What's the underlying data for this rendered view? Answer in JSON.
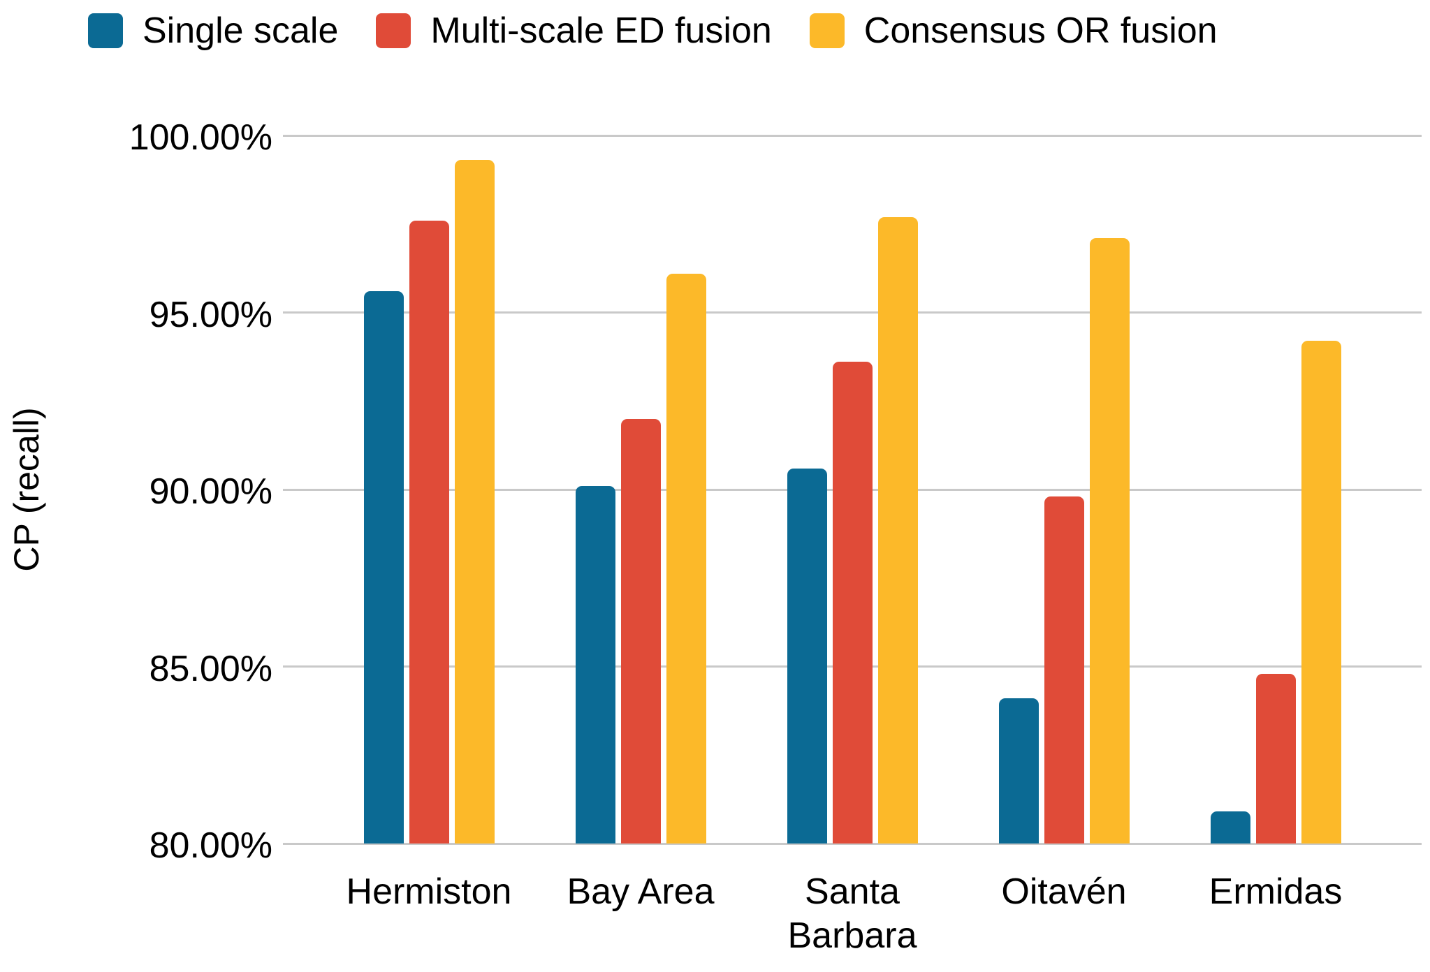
{
  "chart_data": {
    "type": "bar",
    "title": "",
    "xlabel": "",
    "ylabel": "CP (recall)",
    "categories": [
      "Hermiston",
      "Bay Area",
      "Santa Barbara",
      "Oitavén",
      "Ermidas"
    ],
    "series": [
      {
        "name": "Single scale",
        "color": "#0b6a94",
        "values": [
          95.6,
          90.1,
          90.6,
          84.1,
          80.9
        ]
      },
      {
        "name": "Multi-scale ED fusion",
        "color": "#e04b38",
        "values": [
          97.6,
          92.0,
          93.6,
          89.8,
          84.8
        ]
      },
      {
        "name": "Consensus OR fusion",
        "color": "#fcb929",
        "values": [
          99.3,
          96.1,
          97.7,
          97.1,
          94.2
        ]
      }
    ],
    "ylim": [
      80,
      100
    ],
    "ytick_values": [
      100,
      95,
      90,
      85,
      80
    ],
    "ytick_labels": [
      "100.00%",
      "95.00%",
      "90.00%",
      "85.00%",
      "80.00%"
    ],
    "grid": true,
    "legend_position": "top",
    "gridline_color": "#c9c9c9",
    "text_color": "#000000"
  }
}
